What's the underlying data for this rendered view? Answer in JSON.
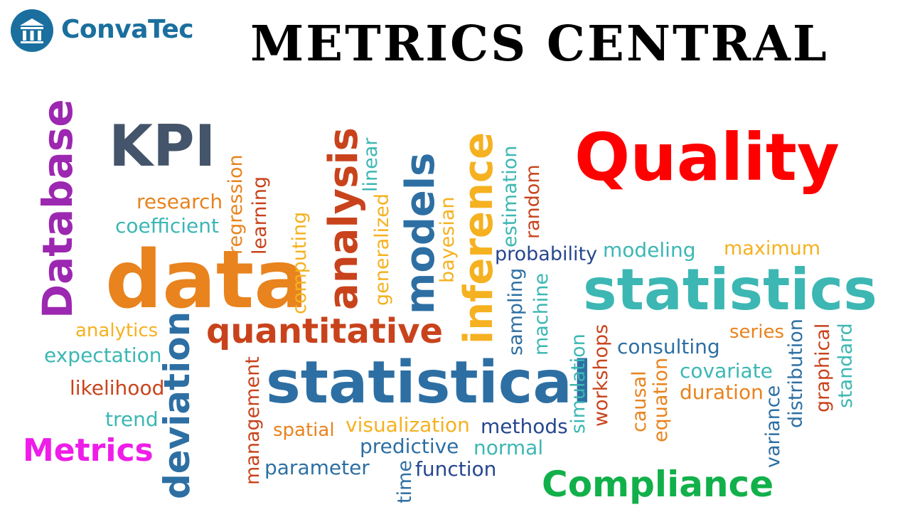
{
  "logo": {
    "text": "ConvaTec",
    "icon": "building-columns-icon",
    "color": "#1a6f9e"
  },
  "banner": {
    "title": "METRICS CENTRAL",
    "color": "#000000"
  },
  "keywords": {
    "kpi": "KPI",
    "quality": "Quality",
    "database": "Database",
    "metrics": "Metrics",
    "compliance": "Compliance"
  },
  "cloud": {
    "data": "data",
    "statistics": "statistics",
    "statistical": "statistical",
    "quantitative": "quantitative",
    "analysis": "analysis",
    "models": "models",
    "inference": "inference",
    "deviation": "deviation",
    "research": "research",
    "coefficient": "coefficient",
    "regression": "regression",
    "learning": "learning",
    "computing": "computing",
    "linear": "linear",
    "generalized": "generalized",
    "bayesian": "bayesian",
    "estimation": "estimation",
    "random": "random",
    "probability": "probability",
    "modeling": "modeling",
    "maximum": "maximum",
    "analytics": "analytics",
    "expectation": "expectation",
    "likelihood": "likelihood",
    "trend": "trend",
    "management": "management",
    "spatial": "spatial",
    "visualization": "visualization",
    "methods": "methods",
    "predictive": "predictive",
    "normal": "normal",
    "parameter": "parameter",
    "time": "time",
    "function": "function",
    "sampling": "sampling",
    "machine": "machine",
    "simulation": "simulation",
    "workshops": "workshops",
    "causal": "causal",
    "equation": "equation",
    "consulting": "consulting",
    "covariate": "covariate",
    "duration": "duration",
    "series": "series",
    "variance": "variance",
    "distribution": "distribution",
    "graphical": "graphical",
    "standard": "standard"
  },
  "colors": {
    "kpi": "#44546a",
    "quality": "#ff0000",
    "database": "#9c27b0",
    "metrics": "#ee1de8",
    "compliance": "#12b04a",
    "orange": "#e8831e",
    "teal": "#3cb7b3",
    "blue": "#2d6fa3",
    "darkblue": "#27478f",
    "yellow": "#f5b120",
    "red": "#c8431c",
    "gray": "#888888"
  }
}
